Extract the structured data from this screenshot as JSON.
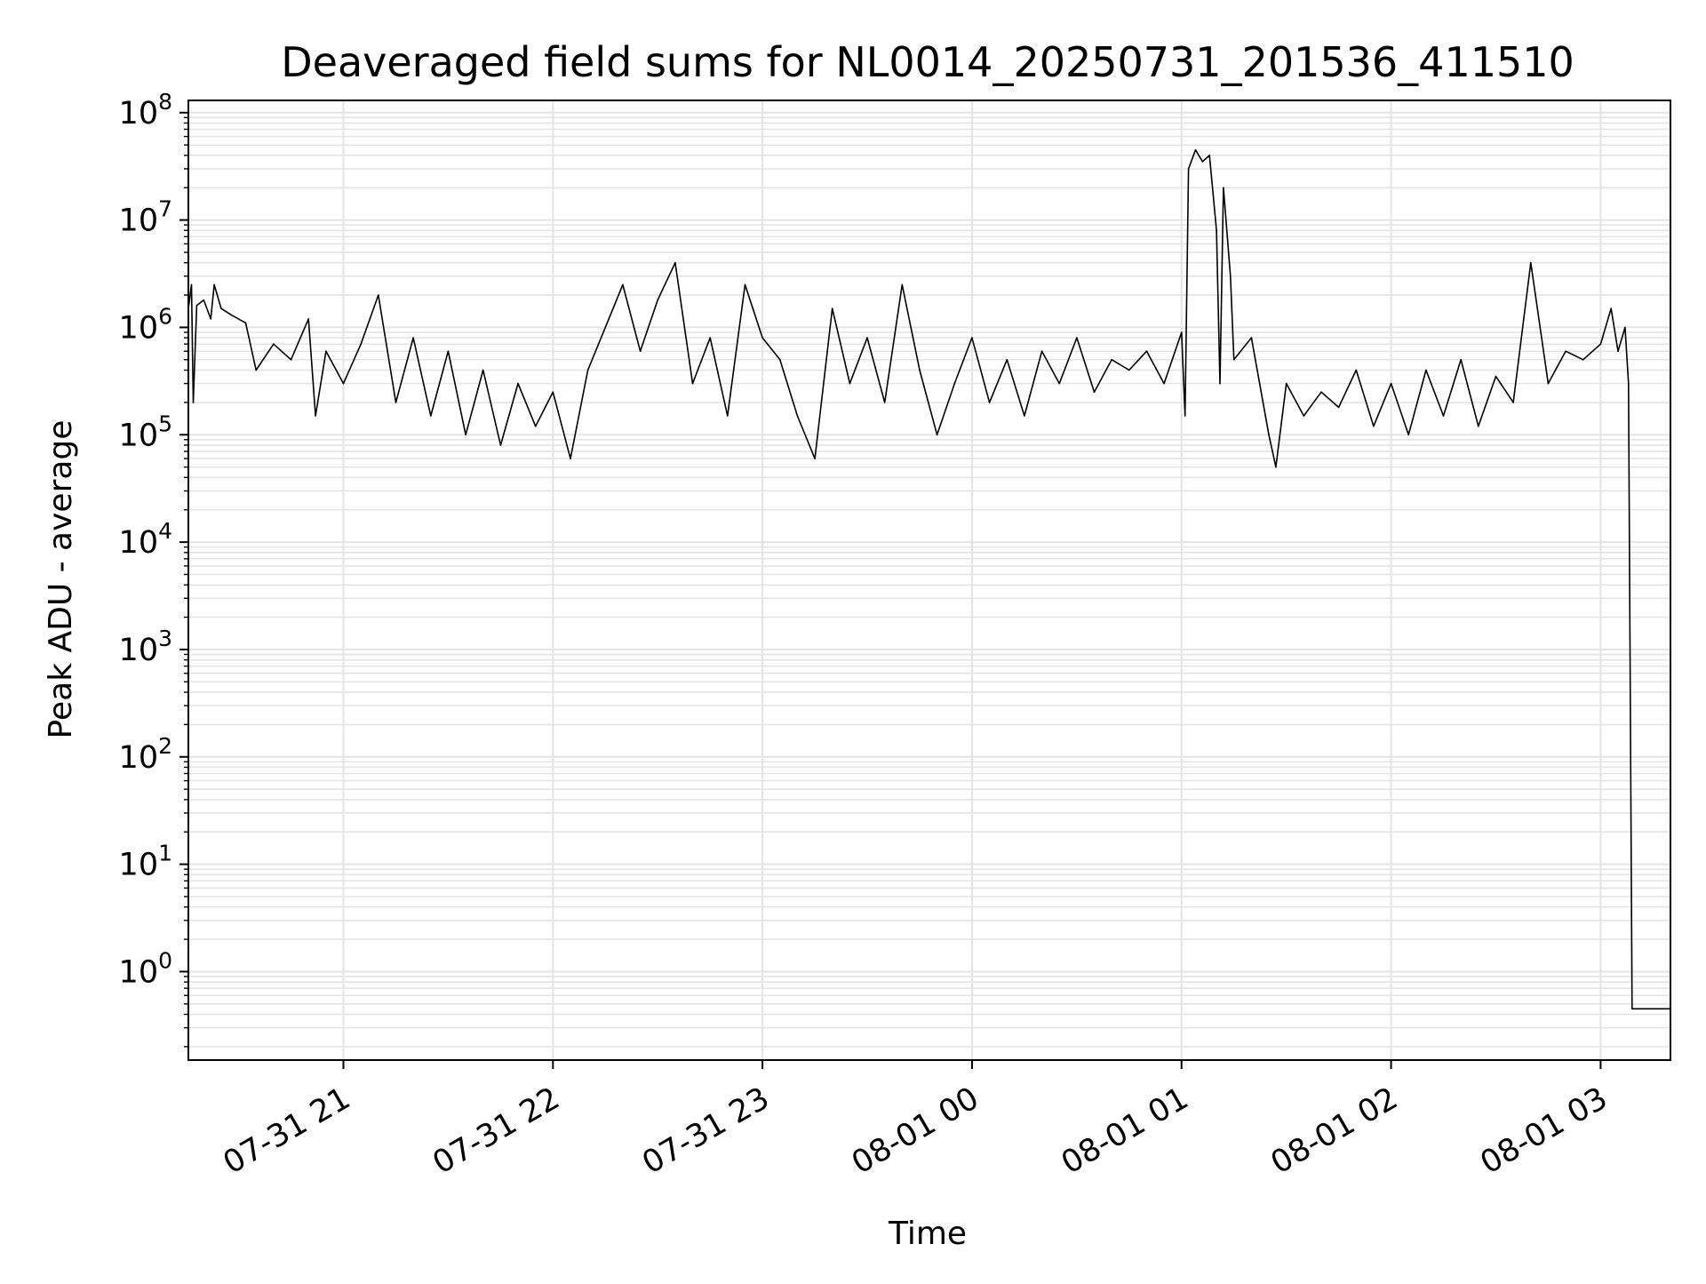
{
  "chart_data": {
    "type": "line",
    "title": "Deaveraged field sums for NL0014_20250731_201536_411510",
    "xlabel": "Time",
    "ylabel": "Peak ADU - average",
    "y_scale": "log",
    "ylim": [
      0.15,
      130000000
    ],
    "xlim": [
      "2025-07-31 20:15:36",
      "2025-08-01 03:20:00"
    ],
    "grid": true,
    "x_ticks": [
      {
        "value": "2025-07-31 21:00",
        "label": "07-31 21"
      },
      {
        "value": "2025-07-31 22:00",
        "label": "07-31 22"
      },
      {
        "value": "2025-07-31 23:00",
        "label": "07-31 23"
      },
      {
        "value": "2025-08-01 00:00",
        "label": "08-01 00"
      },
      {
        "value": "2025-08-01 01:00",
        "label": "08-01 01"
      },
      {
        "value": "2025-08-01 02:00",
        "label": "08-01 02"
      },
      {
        "value": "2025-08-01 03:00",
        "label": "08-01 03"
      }
    ],
    "y_ticks": [
      {
        "value": 1,
        "base": "10",
        "exp": "0"
      },
      {
        "value": 10,
        "base": "10",
        "exp": "1"
      },
      {
        "value": 100,
        "base": "10",
        "exp": "2"
      },
      {
        "value": 1000,
        "base": "10",
        "exp": "3"
      },
      {
        "value": 10000,
        "base": "10",
        "exp": "4"
      },
      {
        "value": 100000,
        "base": "10",
        "exp": "5"
      },
      {
        "value": 1000000,
        "base": "10",
        "exp": "6"
      },
      {
        "value": 10000000,
        "base": "10",
        "exp": "7"
      },
      {
        "value": 100000000,
        "base": "10",
        "exp": "8"
      }
    ],
    "series": [
      {
        "color": "#000000",
        "points": [
          [
            "2025-07-31 20:15:36",
            1500000
          ],
          [
            "2025-07-31 20:16:30",
            2500000
          ],
          [
            "2025-07-31 20:17:00",
            200000
          ],
          [
            "2025-07-31 20:18:00",
            1600000
          ],
          [
            "2025-07-31 20:20:00",
            1800000
          ],
          [
            "2025-07-31 20:22:00",
            1200000
          ],
          [
            "2025-07-31 20:23:00",
            2500000
          ],
          [
            "2025-07-31 20:25:00",
            1500000
          ],
          [
            "2025-07-31 20:28:00",
            1300000
          ],
          [
            "2025-07-31 20:32:00",
            1100000
          ],
          [
            "2025-07-31 20:35:00",
            400000
          ],
          [
            "2025-07-31 20:40:00",
            700000
          ],
          [
            "2025-07-31 20:45:00",
            500000
          ],
          [
            "2025-07-31 20:50:00",
            1200000
          ],
          [
            "2025-07-31 20:52:00",
            150000
          ],
          [
            "2025-07-31 20:55:00",
            600000
          ],
          [
            "2025-07-31 21:00:00",
            300000
          ],
          [
            "2025-07-31 21:05:00",
            700000
          ],
          [
            "2025-07-31 21:10:00",
            2000000
          ],
          [
            "2025-07-31 21:15:00",
            200000
          ],
          [
            "2025-07-31 21:20:00",
            800000
          ],
          [
            "2025-07-31 21:25:00",
            150000
          ],
          [
            "2025-07-31 21:30:00",
            600000
          ],
          [
            "2025-07-31 21:35:00",
            100000
          ],
          [
            "2025-07-31 21:40:00",
            400000
          ],
          [
            "2025-07-31 21:45:00",
            80000
          ],
          [
            "2025-07-31 21:50:00",
            300000
          ],
          [
            "2025-07-31 21:55:00",
            120000
          ],
          [
            "2025-07-31 22:00:00",
            250000
          ],
          [
            "2025-07-31 22:05:00",
            60000
          ],
          [
            "2025-07-31 22:10:00",
            400000
          ],
          [
            "2025-07-31 22:15:00",
            1000000
          ],
          [
            "2025-07-31 22:20:00",
            2500000
          ],
          [
            "2025-07-31 22:25:00",
            600000
          ],
          [
            "2025-07-31 22:30:00",
            1800000
          ],
          [
            "2025-07-31 22:35:00",
            4000000
          ],
          [
            "2025-07-31 22:40:00",
            300000
          ],
          [
            "2025-07-31 22:45:00",
            800000
          ],
          [
            "2025-07-31 22:50:00",
            150000
          ],
          [
            "2025-07-31 22:55:00",
            2500000
          ],
          [
            "2025-07-31 23:00:00",
            800000
          ],
          [
            "2025-07-31 23:05:00",
            500000
          ],
          [
            "2025-07-31 23:10:00",
            150000
          ],
          [
            "2025-07-31 23:15:00",
            60000
          ],
          [
            "2025-07-31 23:20:00",
            1500000
          ],
          [
            "2025-07-31 23:25:00",
            300000
          ],
          [
            "2025-07-31 23:30:00",
            800000
          ],
          [
            "2025-07-31 23:35:00",
            200000
          ],
          [
            "2025-07-31 23:40:00",
            2500000
          ],
          [
            "2025-07-31 23:45:00",
            400000
          ],
          [
            "2025-07-31 23:50:00",
            100000
          ],
          [
            "2025-07-31 23:55:00",
            300000
          ],
          [
            "2025-08-01 00:00:00",
            800000
          ],
          [
            "2025-08-01 00:05:00",
            200000
          ],
          [
            "2025-08-01 00:10:00",
            500000
          ],
          [
            "2025-08-01 00:15:00",
            150000
          ],
          [
            "2025-08-01 00:20:00",
            600000
          ],
          [
            "2025-08-01 00:25:00",
            300000
          ],
          [
            "2025-08-01 00:30:00",
            800000
          ],
          [
            "2025-08-01 00:35:00",
            250000
          ],
          [
            "2025-08-01 00:40:00",
            500000
          ],
          [
            "2025-08-01 00:45:00",
            400000
          ],
          [
            "2025-08-01 00:50:00",
            600000
          ],
          [
            "2025-08-01 00:55:00",
            300000
          ],
          [
            "2025-08-01 01:00:00",
            900000
          ],
          [
            "2025-08-01 01:01:00",
            150000
          ],
          [
            "2025-08-01 01:02:00",
            30000000
          ],
          [
            "2025-08-01 01:04:00",
            45000000
          ],
          [
            "2025-08-01 01:06:00",
            35000000
          ],
          [
            "2025-08-01 01:08:00",
            40000000
          ],
          [
            "2025-08-01 01:10:00",
            8000000
          ],
          [
            "2025-08-01 01:11:00",
            300000
          ],
          [
            "2025-08-01 01:12:00",
            20000000
          ],
          [
            "2025-08-01 01:14:00",
            3000000
          ],
          [
            "2025-08-01 01:15:00",
            500000
          ],
          [
            "2025-08-01 01:20:00",
            800000
          ],
          [
            "2025-08-01 01:25:00",
            100000
          ],
          [
            "2025-08-01 01:27:00",
            50000
          ],
          [
            "2025-08-01 01:30:00",
            300000
          ],
          [
            "2025-08-01 01:35:00",
            150000
          ],
          [
            "2025-08-01 01:40:00",
            250000
          ],
          [
            "2025-08-01 01:45:00",
            180000
          ],
          [
            "2025-08-01 01:50:00",
            400000
          ],
          [
            "2025-08-01 01:55:00",
            120000
          ],
          [
            "2025-08-01 02:00:00",
            300000
          ],
          [
            "2025-08-01 02:05:00",
            100000
          ],
          [
            "2025-08-01 02:10:00",
            400000
          ],
          [
            "2025-08-01 02:15:00",
            150000
          ],
          [
            "2025-08-01 02:20:00",
            500000
          ],
          [
            "2025-08-01 02:25:00",
            120000
          ],
          [
            "2025-08-01 02:30:00",
            350000
          ],
          [
            "2025-08-01 02:35:00",
            200000
          ],
          [
            "2025-08-01 02:40:00",
            4000000
          ],
          [
            "2025-08-01 02:45:00",
            300000
          ],
          [
            "2025-08-01 02:50:00",
            600000
          ],
          [
            "2025-08-01 02:55:00",
            500000
          ],
          [
            "2025-08-01 03:00:00",
            700000
          ],
          [
            "2025-08-01 03:03:00",
            1500000
          ],
          [
            "2025-08-01 03:05:00",
            600000
          ],
          [
            "2025-08-01 03:07:00",
            1000000
          ],
          [
            "2025-08-01 03:08:00",
            300000
          ],
          [
            "2025-08-01 03:09:00",
            0.45
          ],
          [
            "2025-08-01 03:20:00",
            0.45
          ]
        ]
      }
    ]
  }
}
